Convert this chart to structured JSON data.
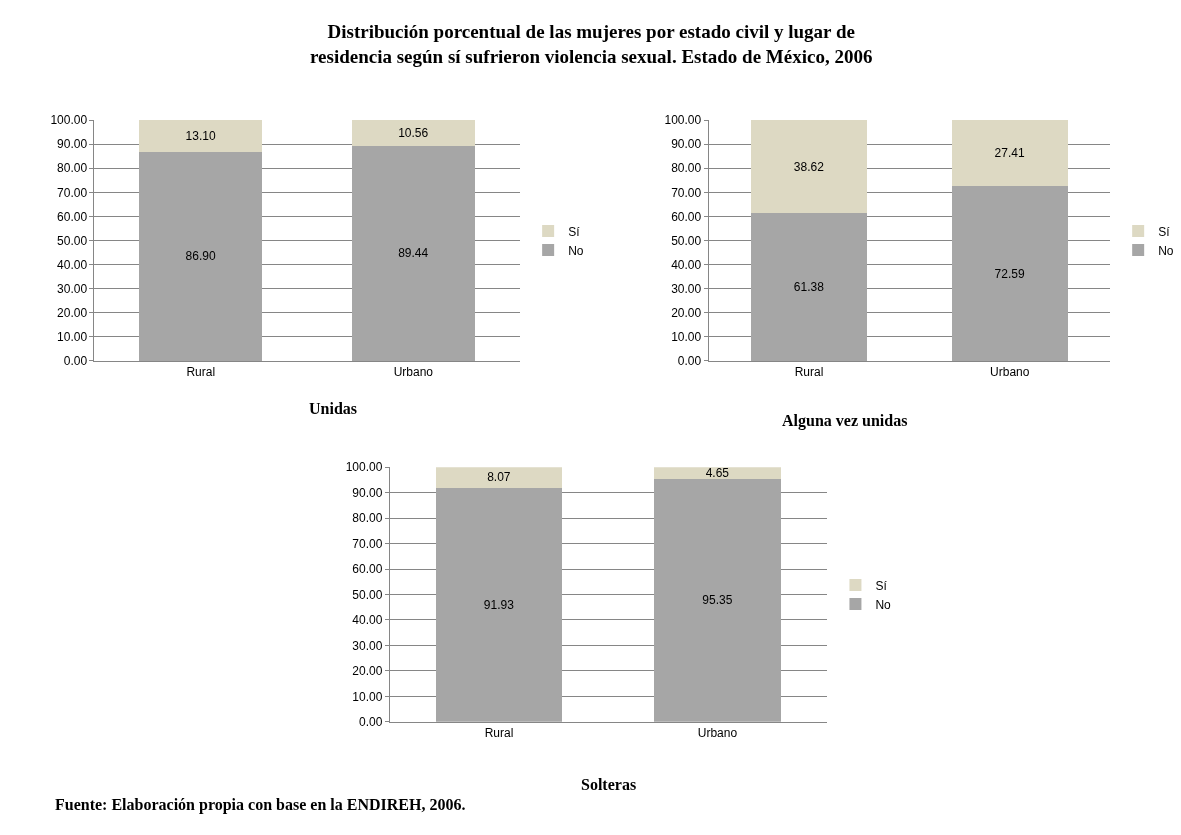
{
  "chart_data": [
    {
      "type": "bar",
      "title": "Distribución porcentual de las mujeres por estado civil y lugar de residencia según sí sufrieron violencia sexual. Estado de México, 2006",
      "xlabel": "Unidas",
      "categories": [
        "Rural",
        "Urbano"
      ],
      "stacked": true,
      "legend": "right",
      "grid": "y",
      "ylim": [
        0,
        100
      ],
      "yticks": [
        {
          "value": 0,
          "label": "0.00"
        },
        {
          "value": 10,
          "label": "10.00"
        },
        {
          "value": 20,
          "label": "20.00"
        },
        {
          "value": 30,
          "label": "30.00"
        },
        {
          "value": 40,
          "label": "40.00"
        },
        {
          "value": 50,
          "label": "50.00"
        },
        {
          "value": 60,
          "label": "60.00"
        },
        {
          "value": 70,
          "label": "70.00"
        },
        {
          "value": 80,
          "label": "80.00"
        },
        {
          "value": 90,
          "label": "90.00"
        },
        {
          "value": 100,
          "label": "100.00"
        }
      ],
      "series": [
        {
          "name": "No",
          "color": "#a6a6a6",
          "values": [
            86.9,
            89.44
          ],
          "value_labels": [
            "86.90",
            "89.44"
          ]
        },
        {
          "name": "Sí",
          "color": "#ddd9c3",
          "values": [
            13.1,
            10.56
          ],
          "value_labels": [
            "13.10",
            "10.56"
          ]
        }
      ]
    },
    {
      "type": "bar",
      "xlabel": "Alguna vez unidas",
      "categories": [
        "Rural",
        "Urbano"
      ],
      "stacked": true,
      "legend": "right",
      "grid": "y",
      "ylim": [
        0,
        100
      ],
      "yticks": [
        {
          "value": 0,
          "label": "0.00"
        },
        {
          "value": 10,
          "label": "10.00"
        },
        {
          "value": 20,
          "label": "20.00"
        },
        {
          "value": 30,
          "label": "30.00"
        },
        {
          "value": 40,
          "label": "40.00"
        },
        {
          "value": 50,
          "label": "50.00"
        },
        {
          "value": 60,
          "label": "60.00"
        },
        {
          "value": 70,
          "label": "70.00"
        },
        {
          "value": 80,
          "label": "80.00"
        },
        {
          "value": 90,
          "label": "90.00"
        },
        {
          "value": 100,
          "label": "100.00"
        }
      ],
      "series": [
        {
          "name": "No",
          "color": "#a6a6a6",
          "values": [
            61.38,
            72.59
          ],
          "value_labels": [
            "61.38",
            "72.59"
          ]
        },
        {
          "name": "Sí",
          "color": "#ddd9c3",
          "values": [
            38.62,
            27.41
          ],
          "value_labels": [
            "38.62",
            "27.41"
          ]
        }
      ]
    },
    {
      "type": "bar",
      "xlabel": "Solteras",
      "categories": [
        "Rural",
        "Urbano"
      ],
      "stacked": true,
      "legend": "right",
      "grid": "y",
      "ylim": [
        0,
        100
      ],
      "yticks": [
        {
          "value": 0,
          "label": "0.00"
        },
        {
          "value": 10,
          "label": "10.00"
        },
        {
          "value": 20,
          "label": "20.00"
        },
        {
          "value": 30,
          "label": "30.00"
        },
        {
          "value": 40,
          "label": "40.00"
        },
        {
          "value": 50,
          "label": "50.00"
        },
        {
          "value": 60,
          "label": "60.00"
        },
        {
          "value": 70,
          "label": "70.00"
        },
        {
          "value": 80,
          "label": "80.00"
        },
        {
          "value": 90,
          "label": "90.00"
        },
        {
          "value": 100,
          "label": "100.00"
        }
      ],
      "annotations": [
        "Fuente: Elaboración propia con base en la ENDIREH, 2006."
      ],
      "series": [
        {
          "name": "No",
          "color": "#a6a6a6",
          "values": [
            91.93,
            95.35
          ],
          "value_labels": [
            "91.93",
            "95.35"
          ]
        },
        {
          "name": "Sí",
          "color": "#ddd9c3",
          "values": [
            8.07,
            4.65
          ],
          "value_labels": [
            "8.07",
            "4.65"
          ]
        }
      ]
    }
  ]
}
